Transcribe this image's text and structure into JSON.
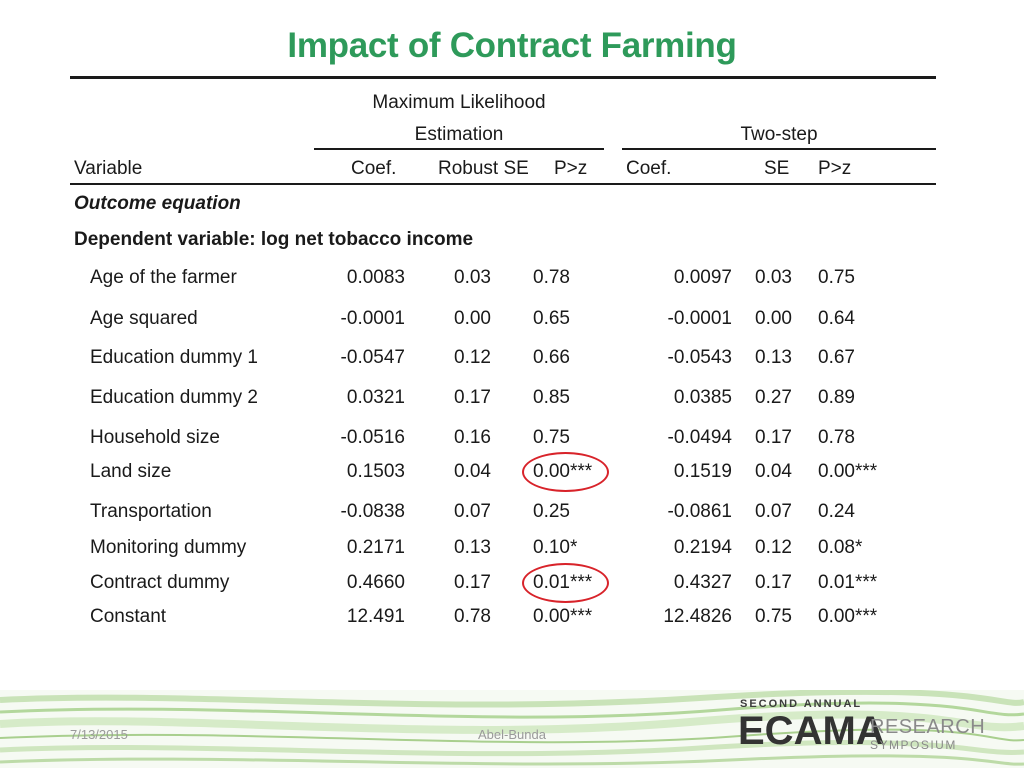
{
  "title": "Impact of Contract Farming",
  "header": {
    "mle_line1": "Maximum Likelihood",
    "mle_line2": "Estimation",
    "twostep": "Two-step",
    "variable": "Variable",
    "coef": "Coef.",
    "robust_se": "Robust SE",
    "pz": "P>z",
    "coef2": "Coef.",
    "se2": "SE",
    "pz2": "P>z"
  },
  "section1": "Outcome equation",
  "section2": "Dependent variable: log net tobacco income",
  "rows": [
    {
      "label": "Age of the farmer",
      "mle_coef": "0.0083",
      "mle_se": "0.03",
      "mle_p": "0.78",
      "ts_coef": "0.0097",
      "ts_se": "0.03",
      "ts_p": "0.75"
    },
    {
      "label": "Age squared",
      "mle_coef": "-0.0001",
      "mle_se": "0.00",
      "mle_p": "0.65",
      "ts_coef": "-0.0001",
      "ts_se": "0.00",
      "ts_p": "0.64"
    },
    {
      "label": "Education dummy 1",
      "mle_coef": "-0.0547",
      "mle_se": "0.12",
      "mle_p": "0.66",
      "ts_coef": "-0.0543",
      "ts_se": "0.13",
      "ts_p": "0.67"
    },
    {
      "label": "Education dummy 2",
      "mle_coef": "0.0321",
      "mle_se": "0.17",
      "mle_p": "0.85",
      "ts_coef": "0.0385",
      "ts_se": "0.27",
      "ts_p": "0.89"
    },
    {
      "label": "Household size",
      "mle_coef": "-0.0516",
      "mle_se": "0.16",
      "mle_p": "0.75",
      "ts_coef": "-0.0494",
      "ts_se": "0.17",
      "ts_p": "0.78"
    },
    {
      "label": "Land size",
      "mle_coef": "0.1503",
      "mle_se": "0.04",
      "mle_p": "0.00***",
      "ts_coef": "0.1519",
      "ts_se": "0.04",
      "ts_p": "0.00***"
    },
    {
      "label": "Transportation",
      "mle_coef": "-0.0838",
      "mle_se": "0.07",
      "mle_p": "0.25",
      "ts_coef": "-0.0861",
      "ts_se": "0.07",
      "ts_p": "0.24"
    },
    {
      "label": "Monitoring dummy",
      "mle_coef": "0.2171",
      "mle_se": "0.13",
      "mle_p": "0.10*",
      "ts_coef": "0.2194",
      "ts_se": "0.12",
      "ts_p": "0.08*"
    },
    {
      "label": "Contract dummy",
      "mle_coef": "0.4660",
      "mle_se": "0.17",
      "mle_p": "0.01***",
      "ts_coef": "0.4327",
      "ts_se": "0.17",
      "ts_p": "0.01***"
    },
    {
      "label": "Constant",
      "mle_coef": "12.491",
      "mle_se": "0.78",
      "mle_p": "0.00***",
      "ts_coef": "12.4826",
      "ts_se": "0.75",
      "ts_p": "0.00***"
    }
  ],
  "footer": {
    "date": "7/13/2015",
    "author": "Abel-Bunda"
  },
  "logo": {
    "line1": "SECOND ANNUAL",
    "main": "ECAMA",
    "line2": "RESEARCH",
    "line3": "SYMPOSIUM"
  },
  "colors": {
    "title": "#2e9a5a",
    "circle": "#d8232a",
    "logo_accent": "#9a8d4a"
  }
}
